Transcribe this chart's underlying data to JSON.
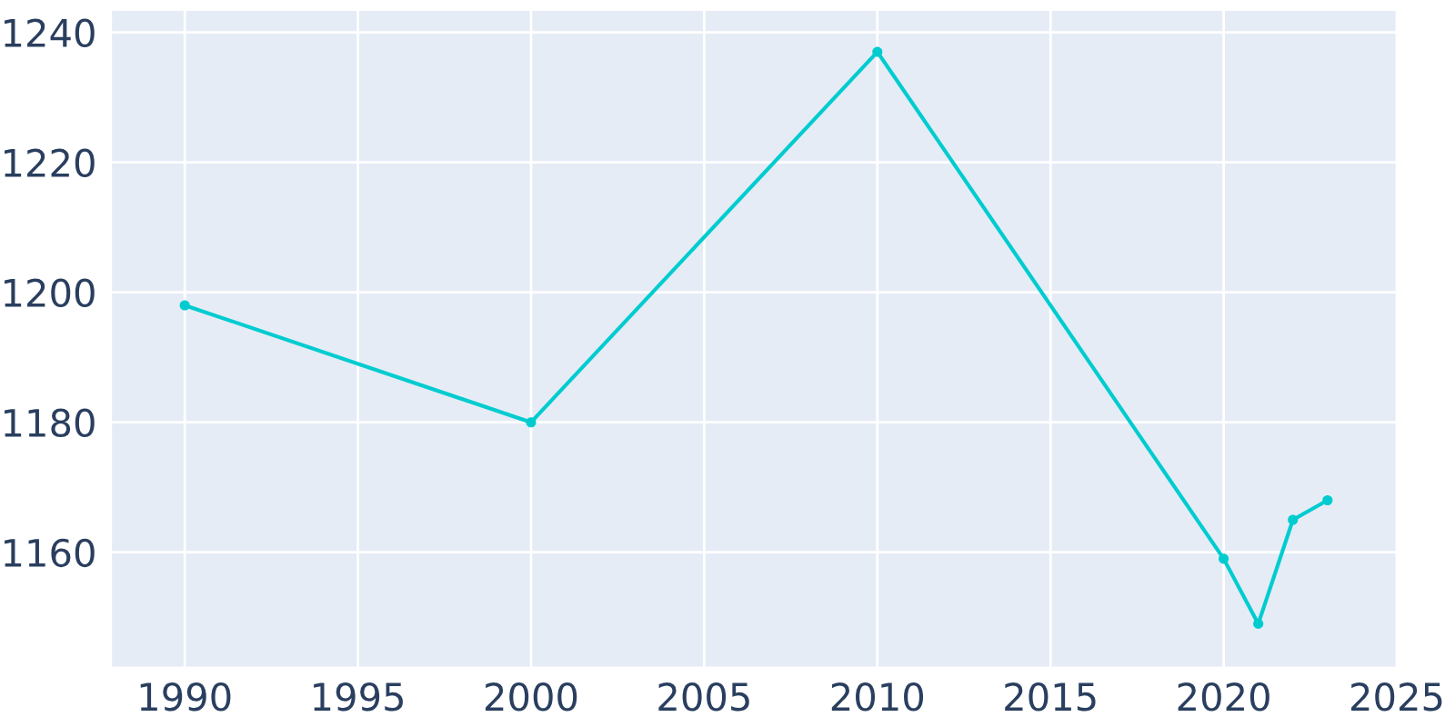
{
  "chart_data": {
    "type": "line",
    "x": [
      1990,
      2000,
      2010,
      2020,
      2021,
      2022,
      2023
    ],
    "series": [
      {
        "color": "#00ccd0",
        "values": [
          1198,
          1180,
          1237,
          1159,
          1149,
          1165,
          1168
        ]
      }
    ],
    "xlim": [
      1987.9,
      2025
    ],
    "ylim": [
      1142.4,
      1243.3
    ],
    "xticks": [
      1990,
      1995,
      2000,
      2005,
      2010,
      2015,
      2020,
      2025
    ],
    "yticks": [
      1160,
      1180,
      1200,
      1220,
      1240
    ],
    "grid": true,
    "marker": "circle",
    "line_style": "solid"
  }
}
